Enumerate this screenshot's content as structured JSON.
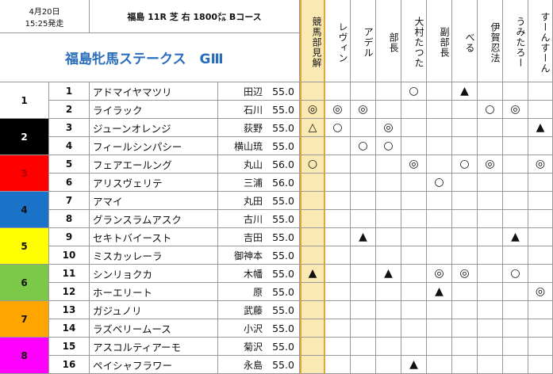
{
  "header": {
    "date": "4月20日",
    "time": "15:25発走",
    "race": "福島 11R 芝 右 1800㍍ Bコース",
    "title": "福島牝馬ステークス　GⅢ"
  },
  "columns": [
    "競馬部見解",
    "レヴィン",
    "アデル",
    "部長",
    "大村たつた",
    "副部長",
    "べる",
    "伊賀忍法",
    "うみたろー",
    "すーんすーん"
  ],
  "gates": [
    {
      "number": 1,
      "color": "#ffffff",
      "text_color": "#111111"
    },
    {
      "number": 2,
      "color": "#000000",
      "text_color": "#ffffff"
    },
    {
      "number": 3,
      "color": "#ff0000",
      "text_color": "#b00000"
    },
    {
      "number": 4,
      "color": "#1a73c8",
      "text_color": "#111111"
    },
    {
      "number": 5,
      "color": "#ffff00",
      "text_color": "#111111"
    },
    {
      "number": 6,
      "color": "#7cc94a",
      "text_color": "#111111"
    },
    {
      "number": 7,
      "color": "#ffa500",
      "text_color": "#111111"
    },
    {
      "number": 8,
      "color": "#ff00ff",
      "text_color": "#111111"
    }
  ],
  "horses": [
    {
      "number": 1,
      "name": "アドマイヤマツリ",
      "jockey": "田辺",
      "weight": "55.0",
      "marks": [
        null,
        null,
        null,
        null,
        "○",
        null,
        "▲",
        null,
        null,
        null
      ]
    },
    {
      "number": 2,
      "name": "ライラック",
      "jockey": "石川",
      "weight": "55.0",
      "marks": [
        "◎",
        "◎",
        "◎",
        null,
        null,
        null,
        null,
        "○",
        "◎",
        null
      ]
    },
    {
      "number": 3,
      "name": "ジューンオレンジ",
      "jockey": "荻野",
      "weight": "55.0",
      "marks": [
        "△",
        "○",
        null,
        "◎",
        null,
        null,
        null,
        null,
        null,
        "▲"
      ]
    },
    {
      "number": 4,
      "name": "フィールシンパシー",
      "jockey": "横山琉",
      "weight": "55.0",
      "marks": [
        null,
        null,
        "○",
        "○",
        null,
        null,
        null,
        null,
        null,
        null
      ]
    },
    {
      "number": 5,
      "name": "フェアエールング",
      "jockey": "丸山",
      "weight": "56.0",
      "marks": [
        "○",
        null,
        null,
        null,
        "◎",
        null,
        "○",
        "◎",
        null,
        "◎"
      ]
    },
    {
      "number": 6,
      "name": "アリスヴェリテ",
      "jockey": "三浦",
      "weight": "56.0",
      "marks": [
        null,
        null,
        null,
        null,
        null,
        "○",
        null,
        null,
        null,
        null
      ]
    },
    {
      "number": 7,
      "name": "アマイ",
      "jockey": "丸田",
      "weight": "55.0",
      "marks": [
        null,
        null,
        null,
        null,
        null,
        null,
        null,
        null,
        null,
        null
      ]
    },
    {
      "number": 8,
      "name": "グランスラムアスク",
      "jockey": "古川",
      "weight": "55.0",
      "marks": [
        null,
        null,
        null,
        null,
        null,
        null,
        null,
        null,
        null,
        null
      ]
    },
    {
      "number": 9,
      "name": "セキトバイースト",
      "jockey": "吉田",
      "weight": "55.0",
      "marks": [
        null,
        null,
        "▲",
        null,
        null,
        null,
        null,
        null,
        "▲",
        null
      ]
    },
    {
      "number": 10,
      "name": "ミスカッレーラ",
      "jockey": "御神本",
      "weight": "55.0",
      "marks": [
        null,
        null,
        null,
        null,
        null,
        null,
        null,
        null,
        null,
        null
      ]
    },
    {
      "number": 11,
      "name": "シンリョクカ",
      "jockey": "木幡",
      "weight": "55.0",
      "marks": [
        "▲",
        null,
        null,
        "▲",
        null,
        "◎",
        "◎",
        null,
        "○",
        null
      ]
    },
    {
      "number": 12,
      "name": "ホーエリート",
      "jockey": "原",
      "weight": "55.0",
      "marks": [
        null,
        null,
        null,
        null,
        null,
        "▲",
        null,
        null,
        null,
        "◎"
      ]
    },
    {
      "number": 13,
      "name": "ガジュノリ",
      "jockey": "武藤",
      "weight": "55.0",
      "marks": [
        null,
        null,
        null,
        null,
        null,
        null,
        null,
        null,
        null,
        null
      ]
    },
    {
      "number": 14,
      "name": "ラズベリームース",
      "jockey": "小沢",
      "weight": "55.0",
      "marks": [
        null,
        null,
        null,
        null,
        null,
        null,
        null,
        null,
        null,
        null
      ]
    },
    {
      "number": 15,
      "name": "アスコルティアーモ",
      "jockey": "菊沢",
      "weight": "55.0",
      "marks": [
        null,
        null,
        null,
        null,
        null,
        null,
        null,
        null,
        null,
        null
      ]
    },
    {
      "number": 16,
      "name": "ペイシャフラワー",
      "jockey": "永島",
      "weight": "55.0",
      "marks": [
        null,
        null,
        null,
        null,
        "▲",
        null,
        null,
        null,
        null,
        null
      ]
    }
  ]
}
